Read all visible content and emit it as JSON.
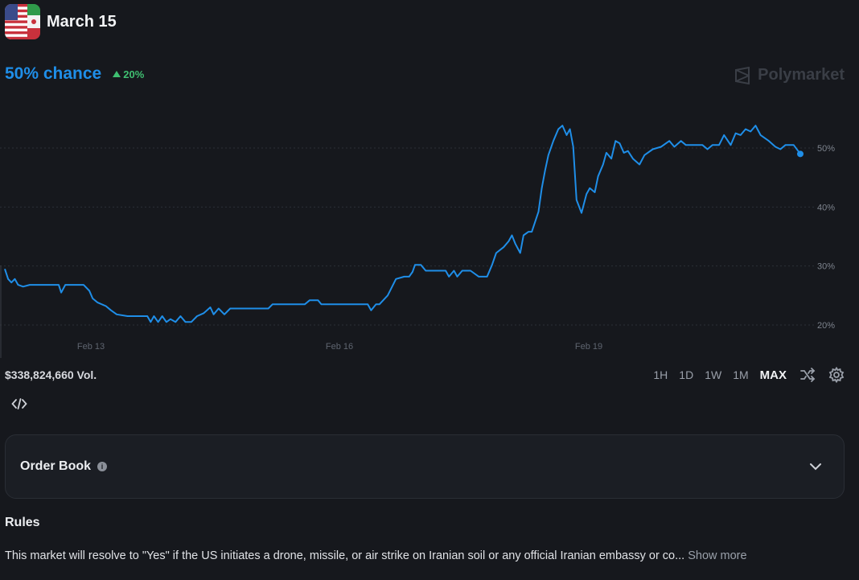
{
  "header": {
    "title": "March 15",
    "flag_icon": "us-iran-flag-icon"
  },
  "market": {
    "chance_label": "50% chance",
    "delta_label": "20%",
    "delta_direction": "up",
    "brand": "Polymarket"
  },
  "chart_data": {
    "type": "line",
    "x_ticks": [
      "Feb 13",
      "Feb 16",
      "Feb 19"
    ],
    "y_ticks": [
      "20%",
      "30%",
      "40%",
      "50%"
    ],
    "ylim": [
      20,
      50
    ],
    "grid": true,
    "series": [
      {
        "color": "#1f8ee8",
        "points": [
          [
            0,
            29.5
          ],
          [
            0.4,
            27.8
          ],
          [
            0.8,
            27.2
          ],
          [
            1.2,
            27.8
          ],
          [
            1.6,
            26.8
          ],
          [
            2.2,
            26.5
          ],
          [
            3,
            26.8
          ],
          [
            4.2,
            26.8
          ],
          [
            5.5,
            26.8
          ],
          [
            6.5,
            26.8
          ],
          [
            6.8,
            25.5
          ],
          [
            7.3,
            26.8
          ],
          [
            8.2,
            26.8
          ],
          [
            9.5,
            26.8
          ],
          [
            10.2,
            25.8
          ],
          [
            10.6,
            24.5
          ],
          [
            11.2,
            23.8
          ],
          [
            12.2,
            23.2
          ],
          [
            12.8,
            22.5
          ],
          [
            13.5,
            21.8
          ],
          [
            14.8,
            21.5
          ],
          [
            15.8,
            21.5
          ],
          [
            16.5,
            21.5
          ],
          [
            17.2,
            21.5
          ],
          [
            17.6,
            20.5
          ],
          [
            18,
            21.5
          ],
          [
            18.5,
            20.5
          ],
          [
            19,
            21.5
          ],
          [
            19.5,
            20.5
          ],
          [
            20,
            21
          ],
          [
            20.6,
            20.5
          ],
          [
            21.2,
            21.5
          ],
          [
            21.8,
            20.5
          ],
          [
            22.5,
            20.5
          ],
          [
            23.2,
            21.5
          ],
          [
            24,
            22
          ],
          [
            24.8,
            23
          ],
          [
            25.2,
            21.8
          ],
          [
            25.8,
            22.8
          ],
          [
            26.5,
            21.8
          ],
          [
            27.2,
            22.8
          ],
          [
            28.5,
            22.8
          ],
          [
            30.2,
            22.8
          ],
          [
            31.8,
            22.8
          ],
          [
            32.3,
            23.5
          ],
          [
            33.2,
            23.5
          ],
          [
            34.8,
            23.5
          ],
          [
            36.2,
            23.5
          ],
          [
            36.8,
            24.2
          ],
          [
            37.8,
            24.2
          ],
          [
            38.2,
            23.5
          ],
          [
            40.2,
            23.5
          ],
          [
            42.2,
            23.5
          ],
          [
            43.8,
            23.5
          ],
          [
            44.2,
            22.5
          ],
          [
            44.8,
            23.5
          ],
          [
            45.2,
            23.5
          ],
          [
            46.2,
            25
          ],
          [
            47.2,
            27.8
          ],
          [
            48.2,
            28.2
          ],
          [
            48.8,
            28.2
          ],
          [
            49.2,
            29
          ],
          [
            49.5,
            30.2
          ],
          [
            50.2,
            30.2
          ],
          [
            50.8,
            29.2
          ],
          [
            52.2,
            29.2
          ],
          [
            53.2,
            29.2
          ],
          [
            53.6,
            28.2
          ],
          [
            54.2,
            29.2
          ],
          [
            54.6,
            28.2
          ],
          [
            55.2,
            29.2
          ],
          [
            56.2,
            29.2
          ],
          [
            57.2,
            28.2
          ],
          [
            58.2,
            28.2
          ],
          [
            58.8,
            30.2
          ],
          [
            59.3,
            32.2
          ],
          [
            60.2,
            33.2
          ],
          [
            60.8,
            34.2
          ],
          [
            61.2,
            35.2
          ],
          [
            61.6,
            33.8
          ],
          [
            62.2,
            32.2
          ],
          [
            62.6,
            35.2
          ],
          [
            63.2,
            35.8
          ],
          [
            63.6,
            35.8
          ],
          [
            64.4,
            39.2
          ],
          [
            64.8,
            43.2
          ],
          [
            65.2,
            46.2
          ],
          [
            65.6,
            48.8
          ],
          [
            66.2,
            51.2
          ],
          [
            66.8,
            53.2
          ],
          [
            67.3,
            53.8
          ],
          [
            67.8,
            52.2
          ],
          [
            68.2,
            53.2
          ],
          [
            68.6,
            50.2
          ],
          [
            69,
            41.2
          ],
          [
            69.6,
            39
          ],
          [
            70.2,
            42.2
          ],
          [
            70.6,
            43.2
          ],
          [
            71.2,
            42.5
          ],
          [
            71.6,
            45.2
          ],
          [
            72.2,
            47.2
          ],
          [
            72.6,
            49.2
          ],
          [
            73.2,
            48.2
          ],
          [
            73.7,
            51.2
          ],
          [
            74.2,
            50.8
          ],
          [
            74.7,
            49.2
          ],
          [
            75.2,
            49.5
          ],
          [
            75.8,
            48.2
          ],
          [
            76.6,
            47.2
          ],
          [
            77.2,
            48.8
          ],
          [
            78.2,
            49.8
          ],
          [
            79.2,
            50.2
          ],
          [
            80.2,
            51.2
          ],
          [
            80.8,
            50.2
          ],
          [
            81.6,
            51.2
          ],
          [
            82.2,
            50.5
          ],
          [
            83.2,
            50.5
          ],
          [
            84.2,
            50.5
          ],
          [
            84.8,
            49.8
          ],
          [
            85.4,
            50.5
          ],
          [
            86.2,
            50.5
          ],
          [
            86.8,
            52.2
          ],
          [
            87.6,
            50.5
          ],
          [
            88.2,
            52.5
          ],
          [
            88.8,
            52.2
          ],
          [
            89.4,
            53.2
          ],
          [
            90,
            52.8
          ],
          [
            90.6,
            53.8
          ],
          [
            91.2,
            52.2
          ],
          [
            92.2,
            51.2
          ],
          [
            93,
            50.2
          ],
          [
            93.6,
            49.8
          ],
          [
            94.2,
            50.5
          ],
          [
            95.2,
            50.5
          ],
          [
            96,
            49
          ]
        ]
      }
    ]
  },
  "volume": {
    "label": "$338,824,660 Vol."
  },
  "ranges": [
    {
      "label": "1H"
    },
    {
      "label": "1D"
    },
    {
      "label": "1W"
    },
    {
      "label": "1M"
    },
    {
      "label": "MAX"
    }
  ],
  "tools": {
    "shuffle_icon": "shuffle-icon",
    "settings_icon": "gear-icon",
    "embed_icon": "code-icon"
  },
  "order_book": {
    "title": "Order Book"
  },
  "rules": {
    "title": "Rules",
    "text": "This market will resolve to \"Yes\" if the US initiates a drone, missile, or air strike on Iranian soil or any official Iranian embassy or co...",
    "show_more": "Show more"
  }
}
